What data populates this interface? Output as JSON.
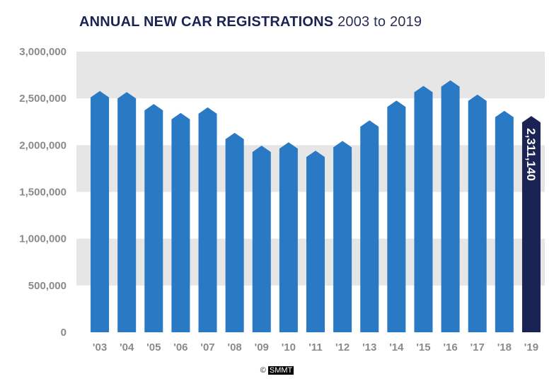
{
  "title": {
    "bold": "ANNUAL NEW CAR REGISTRATIONS",
    "light": "2003 to 2019"
  },
  "credit": {
    "symbol": "©",
    "name": "SMMT"
  },
  "colors": {
    "bar": "#2979c4",
    "highlight": "#1b2354",
    "band": "#e6e6e6",
    "tick": "#8a8a8a",
    "title": "#1b2354"
  },
  "chart_data": {
    "type": "bar",
    "categories": [
      "'03",
      "'04",
      "'05",
      "'06",
      "'07",
      "'08",
      "'09",
      "'10",
      "'11",
      "'12",
      "'13",
      "'14",
      "'15",
      "'16",
      "'17",
      "'18",
      "'19"
    ],
    "values": [
      2579050,
      2567269,
      2439717,
      2344864,
      2404007,
      2131795,
      1994999,
      2030846,
      1941253,
      2044609,
      2264737,
      2476435,
      2633503,
      2692786,
      2540617,
      2367147,
      2311140
    ],
    "ylim": [
      0,
      3000000
    ],
    "yticks": [
      {
        "value": 0,
        "label": "0"
      },
      {
        "value": 500000,
        "label": "500,000"
      },
      {
        "value": 1000000,
        "label": "1,000,000"
      },
      {
        "value": 1500000,
        "label": "1,500,000"
      },
      {
        "value": 2000000,
        "label": "2,000,000"
      },
      {
        "value": 2500000,
        "label": "2,500,000"
      },
      {
        "value": 3000000,
        "label": "3,000,000"
      }
    ],
    "highlight_index": 16,
    "highlight_label": "2,311,140",
    "grid_bands": true,
    "legend": "none"
  }
}
